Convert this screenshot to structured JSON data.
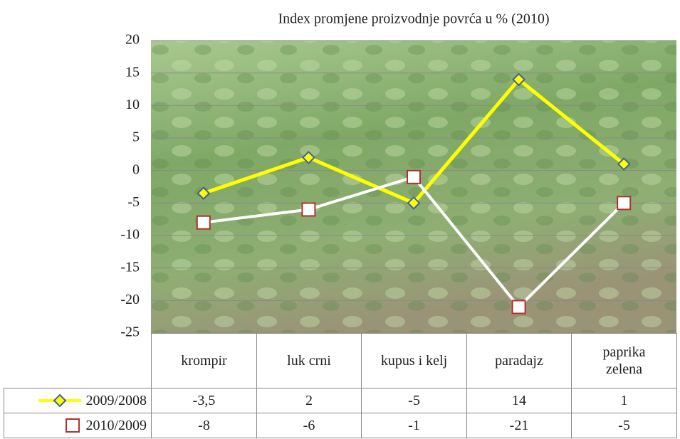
{
  "chart_data": {
    "type": "line",
    "title": "Index promjene proizvodnje povrća u % (2010)",
    "categories": [
      "krompir",
      "luk crni",
      "kupus i kelj",
      "paradajz",
      "paprika zelena"
    ],
    "series": [
      {
        "name": "2009/2008",
        "color": "#ffff00",
        "marker_edge": "#4060a0",
        "values": [
          -3.5,
          2,
          -5,
          14,
          1
        ],
        "value_labels": [
          "-3,5",
          "2",
          "-5",
          "14",
          "1"
        ]
      },
      {
        "name": "2010/2009",
        "color": "#ffffff",
        "marker_edge": "#b03030",
        "values": [
          -8,
          -6,
          -1,
          -21,
          -5
        ]
      }
    ],
    "ylim": [
      -25,
      20
    ],
    "yticks": [
      20,
      15,
      10,
      5,
      0,
      -5,
      -10,
      -15,
      -20,
      -25
    ],
    "grid": true,
    "data_table": true
  }
}
